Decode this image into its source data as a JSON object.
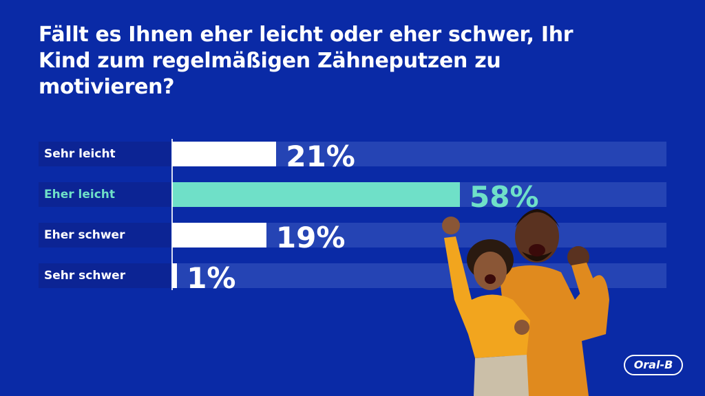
{
  "title": "Fällt es Ihnen eher leicht oder eher schwer, Ihr Kind zum regelmäßigen Zähneputzen zu motivieren?",
  "colors": {
    "background": "#0a2aa6",
    "track": "#2544b4",
    "label_bg": "#0c2494",
    "bar_default": "#ffffff",
    "bar_highlight": "#6fe0c8",
    "text": "#ffffff"
  },
  "chart_data": {
    "type": "bar",
    "orientation": "horizontal",
    "title": "Fällt es Ihnen eher leicht oder eher schwer, Ihr Kind zum regelmäßigen Zähneputzen zu motivieren?",
    "categories": [
      "Sehr leicht",
      "Eher leicht",
      "Eher schwer",
      "Sehr schwer"
    ],
    "values": [
      21,
      58,
      19,
      1
    ],
    "value_labels": [
      "21%",
      "58%",
      "19%",
      "1%"
    ],
    "highlight_index": 1,
    "unit": "%",
    "xlim": [
      0,
      100
    ],
    "xlabel": "",
    "ylabel": ""
  },
  "illustration": {
    "description_icon": "parent-and-child-cheering-photo"
  },
  "brand": {
    "logo_text": "Oral-B"
  }
}
